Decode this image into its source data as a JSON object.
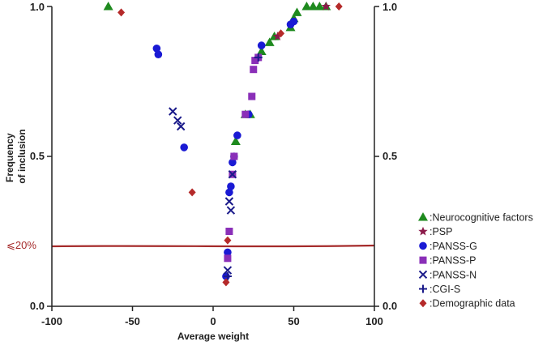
{
  "chart_data": {
    "type": "scatter",
    "title": "",
    "xlabel": "Average weight",
    "ylabel": "Frequency of inclusion",
    "xlim": [
      -100,
      100
    ],
    "ylim": [
      0,
      1
    ],
    "x_ticks": [
      "-100",
      "-50",
      "0",
      "50",
      "100"
    ],
    "y_ticks": [
      "0.0",
      "0.5",
      "1.0"
    ],
    "y_ticks_right": [
      "0.0",
      "0.5",
      "1.0"
    ],
    "threshold": {
      "label": "⩽20%",
      "value": 0.2,
      "color": "#a52a2a"
    },
    "series": [
      {
        "name": "Neurocognitive factors",
        "marker": "triangle",
        "color": "#1e8a1e",
        "points": [
          [
            -65,
            1.0
          ],
          [
            20,
            0.64
          ],
          [
            23,
            0.64
          ],
          [
            14,
            0.55
          ],
          [
            30,
            0.85
          ],
          [
            35,
            0.88
          ],
          [
            38,
            0.9
          ],
          [
            48,
            0.93
          ],
          [
            50,
            0.96
          ],
          [
            52,
            0.98
          ],
          [
            58,
            1.0
          ],
          [
            62,
            1.0
          ],
          [
            66,
            1.0
          ],
          [
            70,
            1.0
          ]
        ]
      },
      {
        "name": "PSP",
        "marker": "star",
        "color": "#8b1a4a",
        "points": [
          [
            40,
            0.9
          ],
          [
            70,
            1.0
          ]
        ]
      },
      {
        "name": "PANSS-G",
        "marker": "circle",
        "color": "#1a1ad4",
        "points": [
          [
            -35,
            0.86
          ],
          [
            -34,
            0.84
          ],
          [
            -18,
            0.53
          ],
          [
            8,
            0.1
          ],
          [
            9,
            0.18
          ],
          [
            10,
            0.38
          ],
          [
            11,
            0.4
          ],
          [
            12,
            0.48
          ],
          [
            13,
            0.5
          ],
          [
            15,
            0.57
          ],
          [
            22,
            0.64
          ],
          [
            30,
            0.87
          ],
          [
            48,
            0.94
          ],
          [
            50,
            0.95
          ]
        ]
      },
      {
        "name": "PANSS-P",
        "marker": "square",
        "color": "#8a2fb8",
        "points": [
          [
            9,
            0.16
          ],
          [
            10,
            0.25
          ],
          [
            12,
            0.44
          ],
          [
            13,
            0.5
          ],
          [
            20,
            0.64
          ],
          [
            24,
            0.7
          ],
          [
            25,
            0.79
          ],
          [
            26,
            0.82
          ],
          [
            28,
            0.83
          ]
        ]
      },
      {
        "name": "PANSS-N",
        "marker": "x",
        "color": "#1a1a8a",
        "points": [
          [
            -25,
            0.65
          ],
          [
            -22,
            0.62
          ],
          [
            -20,
            0.6
          ],
          [
            9,
            0.12
          ],
          [
            10,
            0.35
          ],
          [
            11,
            0.32
          ],
          [
            12,
            0.44
          ]
        ]
      },
      {
        "name": "CGI-S",
        "marker": "plus",
        "color": "#1a1a8a",
        "points": [
          [
            9,
            0.1
          ],
          [
            28,
            0.83
          ]
        ]
      },
      {
        "name": "Demographic data",
        "marker": "diamond",
        "color": "#b52a2a",
        "points": [
          [
            -57,
            0.98
          ],
          [
            -13,
            0.38
          ],
          [
            9,
            0.22
          ],
          [
            8,
            0.08
          ],
          [
            42,
            0.91
          ],
          [
            78,
            1.0
          ]
        ]
      }
    ]
  }
}
